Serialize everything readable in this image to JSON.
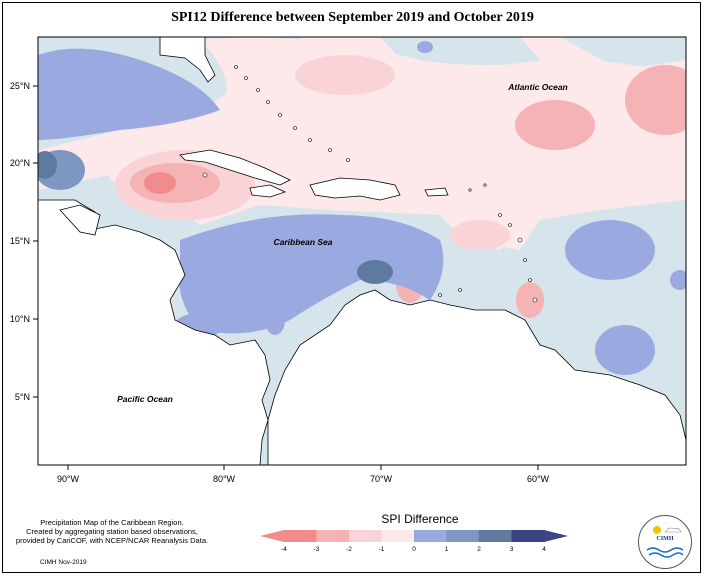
{
  "title": "SPI12 Difference between September 2019 and October 2019",
  "labels": {
    "atlantic": "Atlantic Ocean",
    "caribbean": "Caribbean Sea",
    "pacific": "Pacific Ocean"
  },
  "axes": {
    "lat_ticks": [
      "25°N",
      "20°N",
      "15°N",
      "10°N",
      "5°N"
    ],
    "lon_ticks": [
      "90°W",
      "80°W",
      "70°W",
      "60°W"
    ]
  },
  "legend": {
    "title": "SPI Difference",
    "ticks": [
      "-4",
      "-3",
      "-2",
      "-1",
      "0",
      "1",
      "2",
      "3",
      "4"
    ],
    "colors": [
      "#f28c8c",
      "#f5b3b5",
      "#f9d3d6",
      "#fde8ea",
      "#d6e5ec",
      "#9aa9e0",
      "#7e97c2",
      "#5e7aa0",
      "#3c4484"
    ]
  },
  "credit": {
    "line1": "Precipitation Map of the Caribbean Region.",
    "line2": "Created by aggregating station based observations,",
    "line3": "provided by CariCOF, with NCEP/NCAR Reanalysis Data.",
    "date": "CIMH Nov-2019"
  },
  "logo": {
    "text": "CIMH"
  }
}
